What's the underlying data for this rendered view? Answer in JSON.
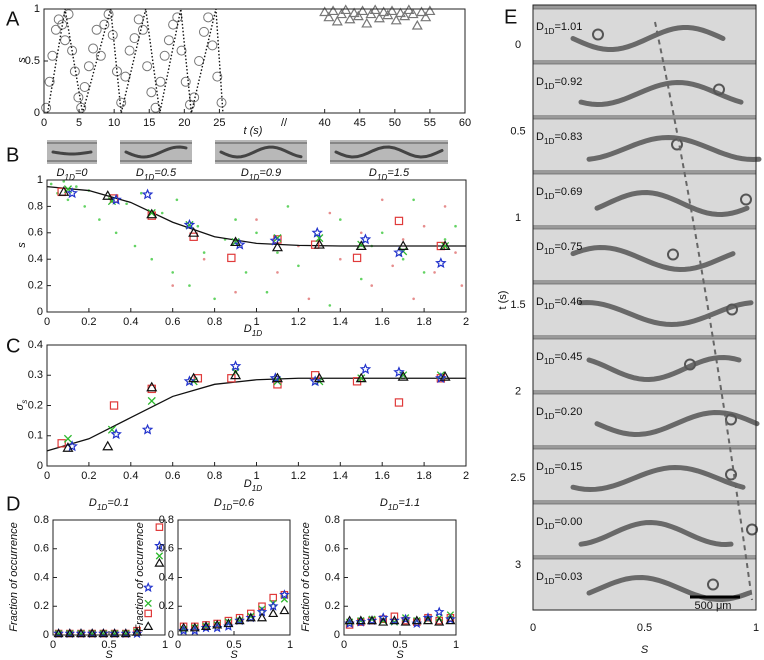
{
  "panel_labels": [
    "A",
    "B",
    "C",
    "D",
    "E"
  ],
  "thumbnails": {
    "labels": [
      "D1D=0",
      "D1D=0.5",
      "D1D=0.9",
      "D1D=1.5"
    ]
  },
  "chart_data": [
    {
      "type": "scatter",
      "xlabel": "t (s)",
      "ylabel": "s",
      "break_label": "//",
      "xlim": [
        0,
        60
      ],
      "ylim": [
        0,
        1
      ],
      "xticks": [
        0,
        5,
        10,
        15,
        20,
        25,
        40,
        45,
        50,
        55,
        60
      ],
      "yticks": [
        0,
        0.5,
        1
      ],
      "series": [
        {
          "marker": "circle",
          "color": "#777777",
          "x": [
            0.3,
            0.8,
            1.2,
            1.7,
            2.1,
            2.6,
            3.0,
            3.5,
            4.0,
            4.4,
            4.9,
            5.3,
            5.8,
            6.4,
            7.0,
            7.5,
            8.1,
            8.6,
            9.2,
            9.8,
            10.4,
            11.0,
            11.6,
            12.2,
            12.9,
            13.5,
            14.1,
            14.7,
            15.3,
            15.9,
            16.6,
            17.2,
            17.8,
            18.4,
            19.0,
            19.6,
            20.2,
            20.8,
            21.4,
            22.1,
            22.8,
            23.4,
            24.0,
            24.7,
            25.3
          ],
          "values": [
            0.05,
            0.3,
            0.55,
            0.8,
            0.9,
            0.85,
            0.7,
            0.95,
            0.6,
            0.4,
            0.15,
            0.05,
            0.25,
            0.45,
            0.62,
            0.8,
            0.55,
            0.85,
            0.95,
            0.75,
            0.4,
            0.1,
            0.35,
            0.6,
            0.72,
            0.9,
            0.8,
            0.45,
            0.2,
            0.05,
            0.3,
            0.55,
            0.7,
            0.85,
            0.92,
            0.6,
            0.3,
            0.08,
            0.15,
            0.5,
            0.78,
            0.92,
            0.65,
            0.35,
            0.1
          ]
        },
        {
          "marker": "dotted-line",
          "color": "#111111",
          "x": [
            0.5,
            3.0,
            5.5,
            9.5,
            11.0,
            14.5,
            16.5,
            19.5,
            21.0,
            24.5,
            25.5
          ],
          "values": [
            0,
            1,
            0,
            1,
            0,
            1,
            0,
            1,
            0,
            1,
            0
          ]
        },
        {
          "marker": "triangle",
          "color": "#777777",
          "x": [
            40,
            40.6,
            41.2,
            41.8,
            42.4,
            43,
            43.6,
            44.2,
            44.8,
            45.4,
            46,
            46.6,
            47.2,
            47.8,
            48.4,
            49,
            49.6,
            50.2,
            50.8,
            51.4,
            52,
            52.6,
            53.2,
            53.8,
            54.4,
            55
          ],
          "values": [
            0.97,
            0.92,
            0.98,
            0.88,
            0.95,
            0.99,
            0.9,
            0.96,
            0.93,
            0.98,
            0.86,
            0.95,
            0.99,
            0.91,
            0.97,
            0.94,
            0.98,
            0.89,
            0.96,
            0.93,
            0.99,
            0.95,
            0.84,
            0.97,
            0.92,
            0.98
          ]
        }
      ]
    },
    {
      "type": "scatter",
      "xlabel": "D1D",
      "ylabel": "s",
      "xlim": [
        0,
        2
      ],
      "ylim": [
        0,
        1
      ],
      "xticks": [
        0,
        0.2,
        0.4,
        0.6,
        0.8,
        1,
        1.2,
        1.4,
        1.6,
        1.8,
        2
      ],
      "yticks": [
        0,
        0.2,
        0.4,
        0.6,
        0.8,
        1
      ],
      "series": [
        {
          "marker": "dot",
          "color": "#3cc83c",
          "x": [
            0.02,
            0.05,
            0.08,
            0.1,
            0.14,
            0.18,
            0.2,
            0.25,
            0.3,
            0.33,
            0.38,
            0.42,
            0.45,
            0.5,
            0.55,
            0.6,
            0.62,
            0.68,
            0.72,
            0.75,
            0.8,
            0.85,
            0.9,
            0.95,
            1.0,
            1.05,
            1.1,
            1.15,
            1.2,
            1.3,
            1.35,
            1.4,
            1.5,
            1.55,
            1.6,
            1.7,
            1.75,
            1.8,
            1.9,
            1.95
          ],
          "values": [
            0.97,
            0.9,
            0.99,
            0.85,
            0.95,
            0.8,
            0.92,
            0.7,
            0.88,
            0.6,
            0.82,
            0.5,
            0.9,
            0.4,
            0.75,
            0.3,
            0.85,
            0.2,
            0.65,
            0.45,
            0.1,
            0.55,
            0.7,
            0.3,
            0.6,
            0.15,
            0.45,
            0.8,
            0.35,
            0.55,
            0.05,
            0.7,
            0.25,
            0.5,
            0.6,
            0.4,
            0.85,
            0.3,
            0.55,
            0.65
          ]
        },
        {
          "marker": "dot",
          "color": "#e07070",
          "x": [
            0.6,
            0.75,
            0.9,
            1.0,
            1.1,
            1.2,
            1.25,
            1.35,
            1.4,
            1.5,
            1.55,
            1.6,
            1.65,
            1.7,
            1.75,
            1.8,
            1.85,
            1.9,
            1.95,
            1.98
          ],
          "values": [
            0.2,
            0.4,
            0.15,
            0.7,
            0.3,
            0.5,
            0.1,
            0.75,
            0.4,
            0.6,
            0.2,
            0.85,
            0.35,
            0.55,
            0.1,
            0.65,
            0.3,
            0.8,
            0.45,
            0.2
          ]
        },
        {
          "marker": "line",
          "color": "#111111",
          "x": [
            0,
            0.2,
            0.4,
            0.6,
            0.8,
            1,
            1.2,
            1.4,
            1.6,
            1.8,
            2
          ],
          "values": [
            0.95,
            0.92,
            0.83,
            0.68,
            0.57,
            0.52,
            0.505,
            0.5,
            0.5,
            0.5,
            0.5
          ]
        },
        {
          "marker": "square",
          "color": "#e03a3a",
          "x": [
            0.07,
            0.32,
            0.5,
            0.7,
            0.88,
            1.1,
            1.28,
            1.48,
            1.68,
            1.88
          ],
          "values": [
            0.91,
            0.86,
            0.73,
            0.57,
            0.41,
            0.55,
            0.51,
            0.41,
            0.69,
            0.5
          ]
        },
        {
          "marker": "cross",
          "color": "#2db82d",
          "x": [
            0.1,
            0.31,
            0.5,
            0.68,
            0.9,
            1.1,
            1.3,
            1.5,
            1.7,
            1.9
          ],
          "values": [
            0.93,
            0.84,
            0.75,
            0.66,
            0.53,
            0.56,
            0.56,
            0.51,
            0.46,
            0.5
          ]
        },
        {
          "marker": "star",
          "color": "#2233cc",
          "x": [
            0.12,
            0.33,
            0.48,
            0.68,
            0.92,
            1.09,
            1.29,
            1.52,
            1.68,
            1.88
          ],
          "values": [
            0.9,
            0.85,
            0.89,
            0.66,
            0.51,
            0.54,
            0.6,
            0.55,
            0.45,
            0.37
          ]
        },
        {
          "marker": "triangle",
          "color": "#111111",
          "x": [
            0.08,
            0.29,
            0.5,
            0.7,
            0.9,
            1.1,
            1.3,
            1.5,
            1.7,
            1.9
          ],
          "values": [
            0.91,
            0.88,
            0.74,
            0.6,
            0.53,
            0.49,
            0.51,
            0.5,
            0.5,
            0.5
          ]
        }
      ]
    },
    {
      "type": "scatter",
      "xlabel": "D1D",
      "ylabel": "σs",
      "xlim": [
        0,
        2
      ],
      "ylim": [
        0,
        0.4
      ],
      "xticks": [
        0,
        0.2,
        0.4,
        0.6,
        0.8,
        1,
        1.2,
        1.4,
        1.6,
        1.8,
        2
      ],
      "yticks": [
        0,
        0.1,
        0.2,
        0.3,
        0.4
      ],
      "series": [
        {
          "marker": "line",
          "color": "#111111",
          "x": [
            0,
            0.2,
            0.4,
            0.6,
            0.8,
            1,
            1.2,
            1.4,
            1.6,
            1.8,
            2
          ],
          "values": [
            0.05,
            0.09,
            0.16,
            0.23,
            0.27,
            0.285,
            0.29,
            0.29,
            0.29,
            0.29,
            0.29
          ]
        },
        {
          "marker": "square",
          "color": "#e03a3a",
          "x": [
            0.07,
            0.32,
            0.5,
            0.72,
            0.88,
            1.1,
            1.28,
            1.48,
            1.68,
            1.88
          ],
          "values": [
            0.075,
            0.2,
            0.255,
            0.29,
            0.29,
            0.27,
            0.3,
            0.28,
            0.21,
            0.29
          ]
        },
        {
          "marker": "cross",
          "color": "#2db82d",
          "x": [
            0.1,
            0.31,
            0.5,
            0.7,
            0.9,
            1.1,
            1.3,
            1.5,
            1.7,
            1.88
          ],
          "values": [
            0.09,
            0.12,
            0.215,
            0.28,
            0.31,
            0.28,
            0.28,
            0.29,
            0.3,
            0.3
          ]
        },
        {
          "marker": "star",
          "color": "#2233cc",
          "x": [
            0.12,
            0.33,
            0.48,
            0.68,
            0.9,
            1.09,
            1.28,
            1.52,
            1.68,
            1.88
          ],
          "values": [
            0.065,
            0.105,
            0.12,
            0.28,
            0.33,
            0.29,
            0.28,
            0.32,
            0.31,
            0.29
          ]
        },
        {
          "marker": "triangle",
          "color": "#111111",
          "x": [
            0.1,
            0.29,
            0.5,
            0.7,
            0.9,
            1.1,
            1.3,
            1.5,
            1.7,
            1.9
          ],
          "values": [
            0.06,
            0.065,
            0.26,
            0.29,
            0.3,
            0.29,
            0.29,
            0.29,
            0.295,
            0.295
          ]
        }
      ]
    },
    {
      "type": "scatter",
      "title": "D1D=0.1",
      "xlabel": "S",
      "ylabel": "Fraction of occurrence",
      "xlim": [
        0,
        1
      ],
      "ylim": [
        0,
        0.8
      ],
      "xticks": [
        0,
        0.5,
        1
      ],
      "yticks": [
        0,
        0.2,
        0.4,
        0.6,
        0.8
      ],
      "x": [
        0.05,
        0.15,
        0.25,
        0.35,
        0.45,
        0.55,
        0.65,
        0.75,
        0.85,
        0.95
      ],
      "series": [
        {
          "marker": "square",
          "color": "#e03a3a",
          "values": [
            0.01,
            0.01,
            0.01,
            0.01,
            0.01,
            0.01,
            0.01,
            0.03,
            0.15,
            0.75
          ]
        },
        {
          "marker": "cross",
          "color": "#2db82d",
          "values": [
            0.01,
            0.01,
            0.01,
            0.01,
            0.01,
            0.01,
            0.01,
            0.02,
            0.22,
            0.55
          ]
        },
        {
          "marker": "star",
          "color": "#2233cc",
          "values": [
            0.01,
            0.01,
            0.01,
            0.01,
            0.01,
            0.01,
            0.01,
            0.01,
            0.33,
            0.62
          ]
        },
        {
          "marker": "triangle",
          "color": "#111111",
          "values": [
            0.01,
            0.01,
            0.01,
            0.01,
            0.01,
            0.01,
            0.01,
            0.02,
            0.06,
            0.5
          ]
        }
      ]
    },
    {
      "type": "scatter",
      "title": "D1D=0.6",
      "xlabel": "S",
      "ylabel": "Fraction of occurrence",
      "xlim": [
        0,
        1
      ],
      "ylim": [
        0,
        0.8
      ],
      "xticks": [
        0,
        0.5,
        1
      ],
      "yticks": [
        0,
        0.2,
        0.4,
        0.6,
        0.8
      ],
      "x": [
        0.05,
        0.15,
        0.25,
        0.35,
        0.45,
        0.55,
        0.65,
        0.75,
        0.85,
        0.95
      ],
      "series": [
        {
          "marker": "square",
          "color": "#e03a3a",
          "values": [
            0.06,
            0.06,
            0.07,
            0.08,
            0.1,
            0.12,
            0.15,
            0.2,
            0.26,
            0.28
          ]
        },
        {
          "marker": "cross",
          "color": "#2db82d",
          "values": [
            0.04,
            0.05,
            0.06,
            0.07,
            0.09,
            0.1,
            0.13,
            0.18,
            0.22,
            0.25
          ]
        },
        {
          "marker": "star",
          "color": "#2233cc",
          "values": [
            0.03,
            0.03,
            0.05,
            0.05,
            0.06,
            0.1,
            0.12,
            0.16,
            0.2,
            0.28
          ]
        },
        {
          "marker": "triangle",
          "color": "#111111",
          "values": [
            0.05,
            0.05,
            0.06,
            0.07,
            0.08,
            0.1,
            0.12,
            0.12,
            0.15,
            0.17
          ]
        }
      ]
    },
    {
      "type": "scatter",
      "title": "D1D=1.1",
      "xlabel": "S",
      "ylabel": "Fraction of occurrence",
      "xlim": [
        0,
        1
      ],
      "ylim": [
        0,
        0.8
      ],
      "xticks": [
        0,
        0.5,
        1
      ],
      "yticks": [
        0,
        0.2,
        0.4,
        0.6,
        0.8
      ],
      "x": [
        0.05,
        0.15,
        0.25,
        0.35,
        0.45,
        0.55,
        0.65,
        0.75,
        0.85,
        0.95
      ],
      "series": [
        {
          "marker": "square",
          "color": "#e03a3a",
          "values": [
            0.07,
            0.09,
            0.1,
            0.11,
            0.13,
            0.1,
            0.09,
            0.12,
            0.1,
            0.12
          ]
        },
        {
          "marker": "cross",
          "color": "#2db82d",
          "values": [
            0.09,
            0.1,
            0.11,
            0.1,
            0.09,
            0.12,
            0.1,
            0.11,
            0.12,
            0.14
          ]
        },
        {
          "marker": "star",
          "color": "#2233cc",
          "values": [
            0.08,
            0.09,
            0.1,
            0.12,
            0.1,
            0.11,
            0.08,
            0.12,
            0.16,
            0.11
          ]
        },
        {
          "marker": "triangle",
          "color": "#111111",
          "values": [
            0.1,
            0.1,
            0.1,
            0.09,
            0.1,
            0.09,
            0.1,
            0.1,
            0.09,
            0.1
          ]
        }
      ]
    }
  ],
  "image_panel": {
    "xlabel": "S",
    "ylabel": "t (s)",
    "xlim": [
      0,
      1
    ],
    "ylim": [
      -0.23,
      3.26
    ],
    "xticks": [
      0,
      0.5,
      1
    ],
    "yticks": [
      0,
      0.5,
      1,
      1.5,
      2,
      2.5,
      3
    ],
    "row_labels": [
      "D1D=1.01",
      "D1D=0.92",
      "D1D=0.83",
      "D1D=0.69",
      "D1D=0.75",
      "D1D=0.46",
      "D1D=0.45",
      "D1D=0.20",
      "D1D=0.15",
      "D1D=0.00",
      "D1D=0.03"
    ],
    "scale_bar": "500 μm"
  }
}
